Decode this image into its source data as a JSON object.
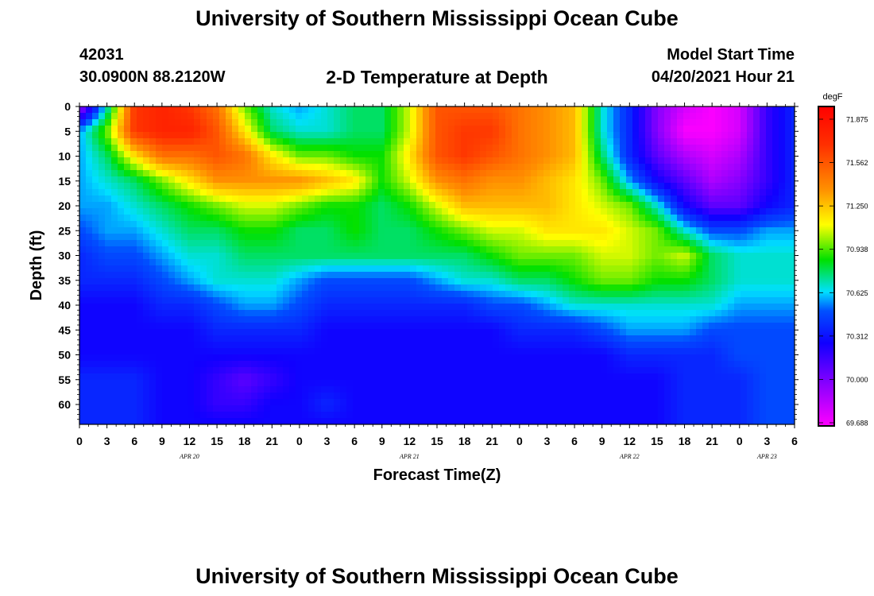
{
  "header": {
    "title": "University of Southern Mississippi Ocean Cube",
    "station_id": "42031",
    "location": "30.0900N  88.2120W",
    "plot_title": "2-D Temperature at Depth",
    "model_label": "Model Start Time",
    "model_time": "04/20/2021 Hour 21"
  },
  "footer": {
    "title": "University of Southern Mississippi Ocean Cube"
  },
  "chart_data": {
    "type": "heatmap",
    "title": "2-D Temperature at Depth",
    "xlabel": "Forecast Time(Z)",
    "ylabel": "Depth (ft)",
    "xlim": [
      0,
      78
    ],
    "ylim": [
      0,
      64
    ],
    "x_tick_values": [
      0,
      3,
      6,
      9,
      12,
      15,
      18,
      21,
      24,
      27,
      30,
      33,
      36,
      39,
      42,
      45,
      48,
      51,
      54,
      57,
      60,
      63,
      66,
      69,
      72,
      75,
      78
    ],
    "x_tick_labels": [
      "0",
      "3",
      "6",
      "9",
      "12",
      "15",
      "18",
      "21",
      "0",
      "3",
      "6",
      "9",
      "12",
      "15",
      "18",
      "21",
      "0",
      "3",
      "6",
      "9",
      "12",
      "15",
      "18",
      "21",
      "0",
      "3",
      "6"
    ],
    "date_labels": [
      {
        "text": "APR 20",
        "x": 12
      },
      {
        "text": "APR 21",
        "x": 36
      },
      {
        "text": "APR 22",
        "x": 60
      },
      {
        "text": "APR 23",
        "x": 75
      }
    ],
    "y_ticks": [
      "0",
      "5",
      "10",
      "15",
      "20",
      "25",
      "30",
      "35",
      "40",
      "45",
      "50",
      "55",
      "60"
    ],
    "colorbar": {
      "unit": "degF",
      "min": 69.688,
      "max": 72.0,
      "tick_labels": [
        "71.875",
        "71.562",
        "71.250",
        "70.938",
        "70.625",
        "70.312",
        "70.000",
        "69.688"
      ]
    },
    "x": [
      0,
      3,
      6,
      9,
      12,
      15,
      18,
      21,
      24,
      27,
      30,
      33,
      36,
      39,
      42,
      45,
      48,
      51,
      54,
      57,
      60,
      63,
      66,
      69,
      72,
      75,
      78
    ],
    "depth": [
      0,
      5,
      10,
      15,
      20,
      25,
      30,
      35,
      40,
      45,
      50,
      55,
      60,
      64
    ],
    "values": [
      [
        69.9,
        70.7,
        71.7,
        71.8,
        71.7,
        71.5,
        71.0,
        70.7,
        70.6,
        70.7,
        70.8,
        70.8,
        71.1,
        71.6,
        71.6,
        71.6,
        71.5,
        71.4,
        71.3,
        70.7,
        70.4,
        70.0,
        69.8,
        69.7,
        69.8,
        70.2,
        70.4
      ],
      [
        70.6,
        71.0,
        71.7,
        71.8,
        71.8,
        71.6,
        71.2,
        70.8,
        70.7,
        70.7,
        70.8,
        70.8,
        71.1,
        71.6,
        71.7,
        71.7,
        71.5,
        71.4,
        71.3,
        70.7,
        70.4,
        70.0,
        69.7,
        69.7,
        69.8,
        70.2,
        70.4
      ],
      [
        70.6,
        70.8,
        71.2,
        71.5,
        71.5,
        71.6,
        71.5,
        71.2,
        71.0,
        71.0,
        70.9,
        70.9,
        71.2,
        71.6,
        71.7,
        71.6,
        71.5,
        71.4,
        71.3,
        70.8,
        70.4,
        70.1,
        69.9,
        69.8,
        69.9,
        70.2,
        70.4
      ],
      [
        70.6,
        70.7,
        70.8,
        71.0,
        71.2,
        71.4,
        71.4,
        71.4,
        71.4,
        71.3,
        71.2,
        70.9,
        71.1,
        71.4,
        71.5,
        71.4,
        71.4,
        71.3,
        71.2,
        71.0,
        70.6,
        70.3,
        70.1,
        69.9,
        70.0,
        70.2,
        70.4
      ],
      [
        70.6,
        70.6,
        70.7,
        70.8,
        70.9,
        71.0,
        71.1,
        71.1,
        71.0,
        70.9,
        70.9,
        70.8,
        70.9,
        71.1,
        71.3,
        71.3,
        71.3,
        71.3,
        71.2,
        71.1,
        71.0,
        70.7,
        70.3,
        70.1,
        70.1,
        70.3,
        70.4
      ],
      [
        70.5,
        70.6,
        70.6,
        70.7,
        70.8,
        70.8,
        70.9,
        70.9,
        70.8,
        70.8,
        70.9,
        70.8,
        70.8,
        70.9,
        71.0,
        71.1,
        71.1,
        71.2,
        71.2,
        71.2,
        71.1,
        71.0,
        70.7,
        70.5,
        70.5,
        70.6,
        70.6
      ],
      [
        70.4,
        70.5,
        70.5,
        70.6,
        70.7,
        70.7,
        70.8,
        70.8,
        70.8,
        70.8,
        70.8,
        70.8,
        70.8,
        70.8,
        70.8,
        70.9,
        71.0,
        71.0,
        71.0,
        71.1,
        71.1,
        71.0,
        71.1,
        70.8,
        70.7,
        70.7,
        70.7
      ],
      [
        70.4,
        70.4,
        70.4,
        70.5,
        70.6,
        70.7,
        70.7,
        70.7,
        70.6,
        70.5,
        70.5,
        70.5,
        70.5,
        70.6,
        70.7,
        70.7,
        70.8,
        70.8,
        70.9,
        71.0,
        71.0,
        70.9,
        70.9,
        70.8,
        70.7,
        70.7,
        70.7
      ],
      [
        70.3,
        70.3,
        70.3,
        70.4,
        70.4,
        70.5,
        70.6,
        70.6,
        70.5,
        70.4,
        70.4,
        70.4,
        70.4,
        70.4,
        70.4,
        70.5,
        70.5,
        70.6,
        70.7,
        70.7,
        70.7,
        70.7,
        70.7,
        70.7,
        70.6,
        70.6,
        70.6
      ],
      [
        70.3,
        70.3,
        70.3,
        70.3,
        70.3,
        70.4,
        70.4,
        70.4,
        70.4,
        70.3,
        70.3,
        70.3,
        70.3,
        70.3,
        70.3,
        70.3,
        70.4,
        70.4,
        70.4,
        70.5,
        70.6,
        70.6,
        70.6,
        70.5,
        70.5,
        70.5,
        70.5
      ],
      [
        70.3,
        70.3,
        70.3,
        70.3,
        70.3,
        70.3,
        70.3,
        70.3,
        70.3,
        70.3,
        70.3,
        70.3,
        70.3,
        70.3,
        70.3,
        70.3,
        70.3,
        70.3,
        70.3,
        70.3,
        70.4,
        70.4,
        70.4,
        70.4,
        70.5,
        70.5,
        70.5
      ],
      [
        70.4,
        70.4,
        70.4,
        70.3,
        70.3,
        70.2,
        70.1,
        70.2,
        70.3,
        70.3,
        70.3,
        70.3,
        70.3,
        70.3,
        70.3,
        70.3,
        70.3,
        70.3,
        70.3,
        70.3,
        70.3,
        70.3,
        70.4,
        70.4,
        70.4,
        70.5,
        70.5
      ],
      [
        70.4,
        70.4,
        70.4,
        70.3,
        70.3,
        70.2,
        70.2,
        70.3,
        70.3,
        70.4,
        70.3,
        70.3,
        70.3,
        70.3,
        70.3,
        70.3,
        70.3,
        70.3,
        70.3,
        70.3,
        70.3,
        70.3,
        70.4,
        70.4,
        70.4,
        70.5,
        70.5
      ],
      [
        70.4,
        70.4,
        70.4,
        70.3,
        70.3,
        70.3,
        70.3,
        70.3,
        70.3,
        70.3,
        70.3,
        70.3,
        70.3,
        70.3,
        70.3,
        70.3,
        70.3,
        70.3,
        70.3,
        70.3,
        70.3,
        70.3,
        70.4,
        70.4,
        70.4,
        70.5,
        70.5
      ]
    ]
  }
}
